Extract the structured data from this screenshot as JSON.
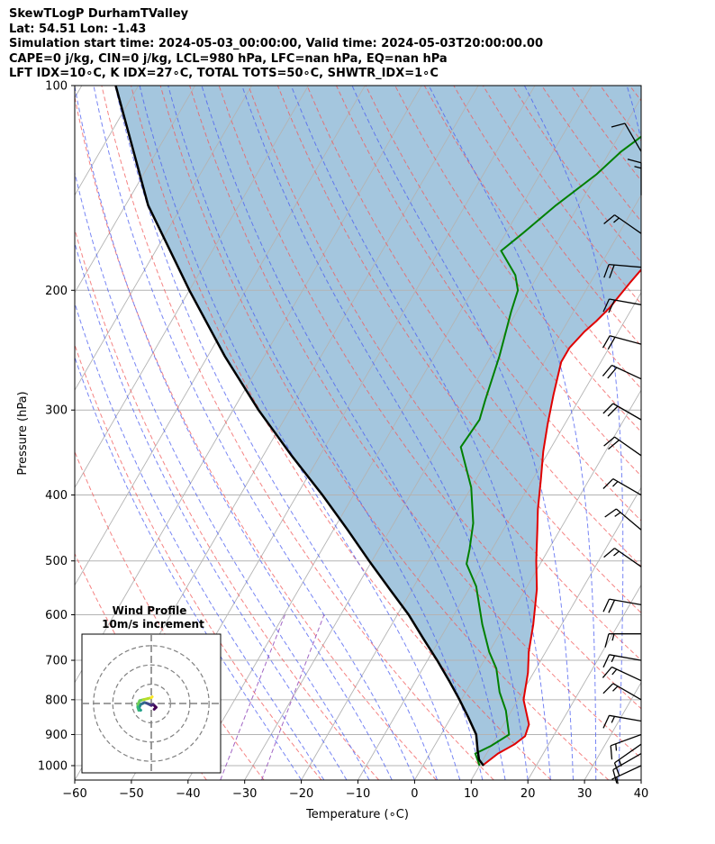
{
  "title_lines": [
    "SkewTLogP DurhamTValley",
    "Lat: 54.51   Lon: -1.43",
    "Simulation start time: 2024-05-03_00:00:00, Valid time: 2024-05-03T20:00:00.00",
    "CAPE=0 j/kg, CIN=0 j/kg, LCL=980 hPa, LFC=nan hPa, EQ=nan hPa",
    "LFT IDX=10∘C, K IDX=27∘C, TOTAL TOTS=50∘C, SHWTR_IDX=1∘C"
  ],
  "chart_data": {
    "type": "skew-t",
    "xlabel": "Temperature (∘C)",
    "ylabel": "Pressure (hPa)",
    "xlim": [
      -60,
      40
    ],
    "ylim": [
      1050,
      100
    ],
    "x_scale": "linear (skewed isotherms)",
    "y_scale": "log",
    "xticks": [
      -60,
      -50,
      -40,
      -30,
      -20,
      -10,
      0,
      10,
      20,
      30,
      40
    ],
    "yticks": [
      1000,
      900,
      800,
      700,
      600,
      500,
      400,
      300,
      200,
      100
    ],
    "grid": true,
    "colors": {
      "temperature": "#e00000",
      "dewpoint": "#008000",
      "parcel": "#000000",
      "shade": "#a4c6de",
      "dry_adiabats": "#f25a5a",
      "moist_adiabats": "#4a5cf0",
      "mixing_ratio": "#8a3fb5",
      "isotherms": "#b3b3b3"
    },
    "series": [
      {
        "key": "temperature",
        "points": [
          [
            10.5,
            1000
          ],
          [
            12,
            960
          ],
          [
            14,
            930
          ],
          [
            15,
            905
          ],
          [
            14.5,
            870
          ],
          [
            11,
            800
          ],
          [
            9,
            730
          ],
          [
            7,
            680
          ],
          [
            5,
            620
          ],
          [
            2,
            550
          ],
          [
            -1,
            500
          ],
          [
            -4,
            450
          ],
          [
            -6,
            420
          ],
          [
            -8.5,
            380
          ],
          [
            -11,
            345
          ],
          [
            -13,
            315
          ],
          [
            -15,
            285
          ],
          [
            -17,
            255
          ],
          [
            -17,
            243
          ],
          [
            -16,
            230
          ],
          [
            -15,
            222
          ],
          [
            -14,
            212
          ],
          [
            -13.5,
            203
          ],
          [
            -13,
            195
          ],
          [
            -12,
            182
          ],
          [
            -10.5,
            170
          ],
          [
            -9,
            160
          ],
          [
            -6,
            147
          ],
          [
            -3,
            135
          ],
          [
            -2,
            128
          ],
          [
            -1,
            120
          ],
          [
            0,
            110
          ],
          [
            2,
            103
          ],
          [
            3,
            100
          ]
        ]
      },
      {
        "key": "dewpoint",
        "points": [
          [
            10,
            1000
          ],
          [
            8,
            960
          ],
          [
            10,
            935
          ],
          [
            12,
            900
          ],
          [
            9,
            830
          ],
          [
            6,
            780
          ],
          [
            3,
            720
          ],
          [
            0,
            680
          ],
          [
            -4,
            620
          ],
          [
            -9,
            545
          ],
          [
            -13,
            505
          ],
          [
            -14,
            480
          ],
          [
            -16,
            440
          ],
          [
            -20,
            390
          ],
          [
            -26,
            340
          ],
          [
            -25.5,
            310
          ],
          [
            -26.5,
            290
          ],
          [
            -28.5,
            250
          ],
          [
            -31,
            215
          ],
          [
            -32,
            200
          ],
          [
            -34,
            190
          ],
          [
            -39,
            175
          ],
          [
            -37,
            165
          ],
          [
            -34,
            150
          ],
          [
            -30,
            135
          ],
          [
            -28,
            125
          ],
          [
            -24,
            113
          ],
          [
            -20,
            100
          ]
        ]
      },
      {
        "key": "parcel",
        "points": [
          [
            10.7,
            1000
          ],
          [
            9.3,
            980
          ],
          [
            8.1,
            950
          ],
          [
            6.2,
            900
          ],
          [
            3.1,
            850
          ],
          [
            -0.3,
            800
          ],
          [
            -4.1,
            750
          ],
          [
            -8.3,
            700
          ],
          [
            -13,
            650
          ],
          [
            -18,
            600
          ],
          [
            -24,
            550
          ],
          [
            -30.5,
            500
          ],
          [
            -37.5,
            450
          ],
          [
            -45.5,
            400
          ],
          [
            -55,
            350
          ],
          [
            -65.5,
            300
          ],
          [
            -77,
            250
          ],
          [
            -90,
            200
          ],
          [
            -106,
            150
          ],
          [
            -124,
            100
          ]
        ]
      }
    ],
    "hodograph": {
      "title": "Wind Profile",
      "subtitle": "10m/s increment",
      "rings_ms": [
        10,
        20,
        30
      ],
      "range_ms": 36,
      "colormap": "viridis",
      "points": [
        [
          1.5,
          -3
        ],
        [
          2.5,
          -2
        ],
        [
          1,
          -0.5
        ],
        [
          0,
          -1
        ],
        [
          -1,
          -0.5
        ],
        [
          -2,
          0
        ],
        [
          -3.5,
          0.5
        ],
        [
          -4.5,
          0
        ],
        [
          -5.5,
          -0.5
        ],
        [
          -6,
          -1.5
        ],
        [
          -6.5,
          -2.5
        ],
        [
          -5.5,
          -3.5
        ],
        [
          -6.5,
          -3.5
        ],
        [
          -7,
          -2
        ],
        [
          -7,
          -0.5
        ],
        [
          -6,
          1.5
        ],
        [
          -4,
          2
        ],
        [
          -2,
          2.5
        ],
        [
          0,
          3
        ],
        [
          0.5,
          3.5
        ]
      ]
    },
    "wind_barbs": [
      {
        "p": 1000,
        "dir": 245,
        "kt": 5
      },
      {
        "p": 960,
        "dir": 240,
        "kt": 10
      },
      {
        "p": 930,
        "dir": 235,
        "kt": 15
      },
      {
        "p": 900,
        "dir": 250,
        "kt": 15
      },
      {
        "p": 860,
        "dir": 280,
        "kt": 15
      },
      {
        "p": 800,
        "dir": 300,
        "kt": 15
      },
      {
        "p": 750,
        "dir": 295,
        "kt": 15
      },
      {
        "p": 700,
        "dir": 280,
        "kt": 15
      },
      {
        "p": 640,
        "dir": 270,
        "kt": 15
      },
      {
        "p": 580,
        "dir": 280,
        "kt": 20
      },
      {
        "p": 510,
        "dir": 305,
        "kt": 15
      },
      {
        "p": 450,
        "dir": 310,
        "kt": 15
      },
      {
        "p": 400,
        "dir": 300,
        "kt": 15
      },
      {
        "p": 350,
        "dir": 305,
        "kt": 20
      },
      {
        "p": 310,
        "dir": 300,
        "kt": 20
      },
      {
        "p": 270,
        "dir": 295,
        "kt": 20
      },
      {
        "p": 240,
        "dir": 285,
        "kt": 20
      },
      {
        "p": 210,
        "dir": 280,
        "kt": 20
      },
      {
        "p": 185,
        "dir": 275,
        "kt": 20
      },
      {
        "p": 165,
        "dir": 305,
        "kt": 15
      },
      {
        "p": 145,
        "dir": 0,
        "kt": 15
      },
      {
        "p": 125,
        "dir": 330,
        "kt": 10
      }
    ]
  }
}
